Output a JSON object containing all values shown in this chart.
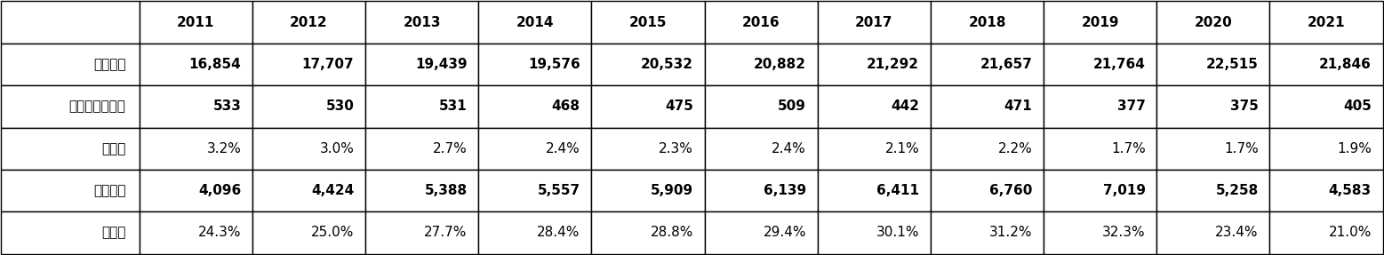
{
  "years": [
    "2011",
    "2012",
    "2013",
    "2014",
    "2015",
    "2016",
    "2017",
    "2018",
    "2019",
    "2020",
    "2021"
  ],
  "row_labels": [
    "卒業者数",
    "大学等進学者数",
    "同、率",
    "就職者数",
    "同、率"
  ],
  "data": {
    "卒業者数": [
      "16,854",
      "17,707",
      "19,439",
      "19,576",
      "20,532",
      "20,882",
      "21,292",
      "21,657",
      "21,764",
      "22,515",
      "21,846"
    ],
    "大学等進学者数": [
      "533",
      "530",
      "531",
      "468",
      "475",
      "509",
      "442",
      "471",
      "377",
      "375",
      "405"
    ],
    "同、率_1": [
      "3.2%",
      "3.0%",
      "2.7%",
      "2.4%",
      "2.3%",
      "2.4%",
      "2.1%",
      "2.2%",
      "1.7%",
      "1.7%",
      "1.9%"
    ],
    "就職者数": [
      "4,096",
      "4,424",
      "5,388",
      "5,557",
      "5,909",
      "6,139",
      "6,411",
      "6,760",
      "7,019",
      "5,258",
      "4,583"
    ],
    "同、率_2": [
      "24.3%",
      "25.0%",
      "27.7%",
      "28.4%",
      "28.8%",
      "29.4%",
      "30.1%",
      "31.2%",
      "32.3%",
      "23.4%",
      "21.0%"
    ]
  },
  "col_header_bg": "#ffffff",
  "row_header_bg": "#ffffff",
  "cell_bg": "#ffffff",
  "border_color": "#000000",
  "text_color": "#000000",
  "header_fontsize": 11,
  "cell_fontsize": 11,
  "bold_rows": [
    "卒業者数",
    "大学等進学者数",
    "就職者数"
  ]
}
